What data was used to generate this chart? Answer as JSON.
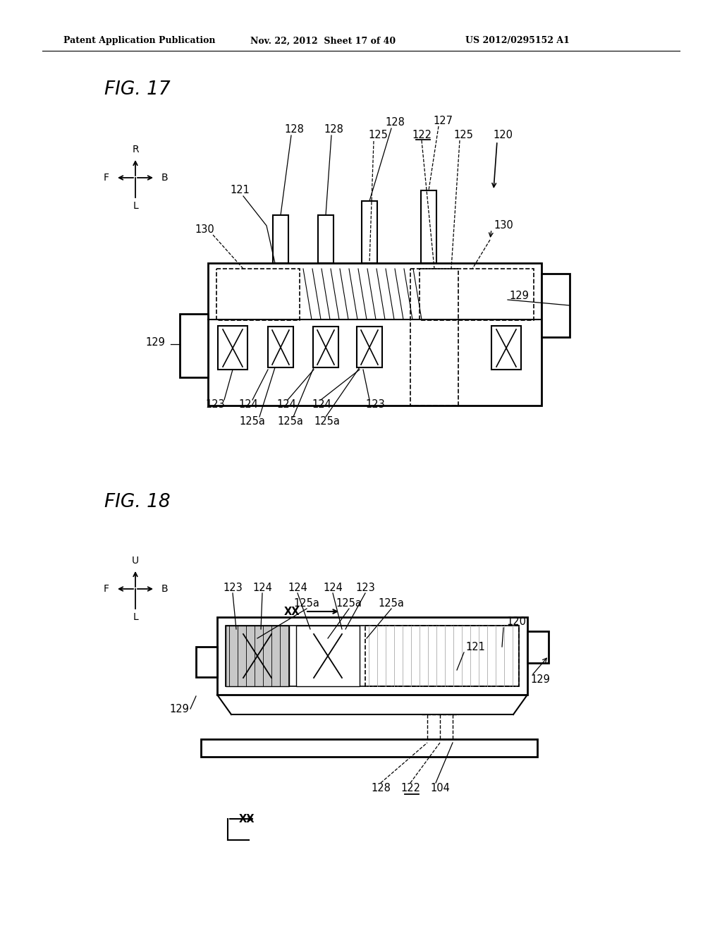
{
  "title_header": "Patent Application Publication",
  "date_header": "Nov. 22, 2012  Sheet 17 of 40",
  "patent_header": "US 2012/0295152 A1",
  "fig17_title": "FIG. 17",
  "fig18_title": "FIG. 18",
  "bg_color": "#ffffff",
  "line_color": "#000000"
}
